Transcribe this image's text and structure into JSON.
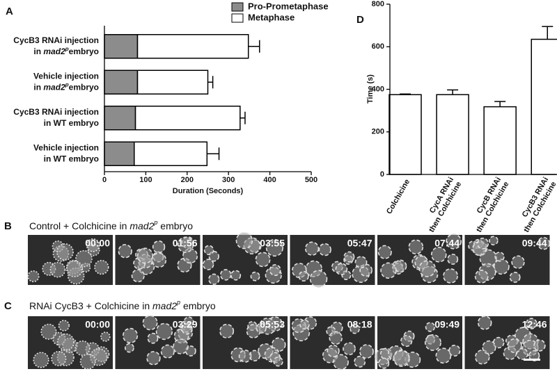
{
  "chart_data": [
    {
      "type": "hbar_stacked",
      "panel": "A",
      "categories": [
        {
          "line1": "CycB3 RNAi injection",
          "line2": [
            "in ",
            "mad2",
            "p",
            "embryo"
          ]
        },
        {
          "line1": "Vehicle injection",
          "line2": [
            "in ",
            "mad2",
            "p",
            "embryo"
          ]
        },
        {
          "line1": "CycB3 RNAi injection",
          "line2": [
            "in WT embryo"
          ]
        },
        {
          "line1": "Vehicle injection",
          "line2": [
            "in WT embryo"
          ]
        }
      ],
      "series": [
        {
          "name": "Pro-Prometaphase",
          "color": "#8c8c8c",
          "values": [
            80,
            80,
            75,
            72
          ],
          "errors": [
            30,
            25,
            15,
            3
          ]
        },
        {
          "name": "Metaphase",
          "color": "#ffffff",
          "values": [
            268,
            170,
            253,
            176
          ],
          "errors": [
            27,
            12,
            12,
            29
          ]
        }
      ],
      "xlim": [
        0,
        500
      ],
      "xticks": [
        0,
        100,
        200,
        300,
        400,
        500
      ],
      "xlabel": "Duration (Seconds)"
    },
    {
      "type": "bar",
      "panel": "D",
      "categories": [
        [
          "Colchicine"
        ],
        [
          "CycA RNAi",
          "then Colchicine"
        ],
        [
          "CycB RNAi",
          "then Colchicine"
        ],
        [
          "CycB3 RNAi",
          "then Colchicine"
        ]
      ],
      "values": [
        375,
        375,
        318,
        635
      ],
      "errors": [
        3,
        22,
        25,
        60
      ],
      "color": "#ffffff",
      "ylim": [
        0,
        800
      ],
      "yticks": [
        0,
        200,
        400,
        600,
        800
      ],
      "ylabel": "Time (s)"
    }
  ],
  "image_rows": [
    {
      "panel": "B",
      "title": [
        "Control + Colchicine in ",
        "mad2",
        "p",
        " embryo"
      ],
      "timestamps": [
        "00:00",
        "01:56",
        "03:55",
        "05:47",
        "07:44",
        "09:44"
      ]
    },
    {
      "panel": "C",
      "title": [
        "RNAi CycB3 + Colchicine in ",
        "mad2",
        "p",
        " embryo"
      ],
      "timestamps": [
        "00:00",
        "03:29",
        "05:53",
        "08:18",
        "09:49",
        "12:46"
      ]
    }
  ]
}
